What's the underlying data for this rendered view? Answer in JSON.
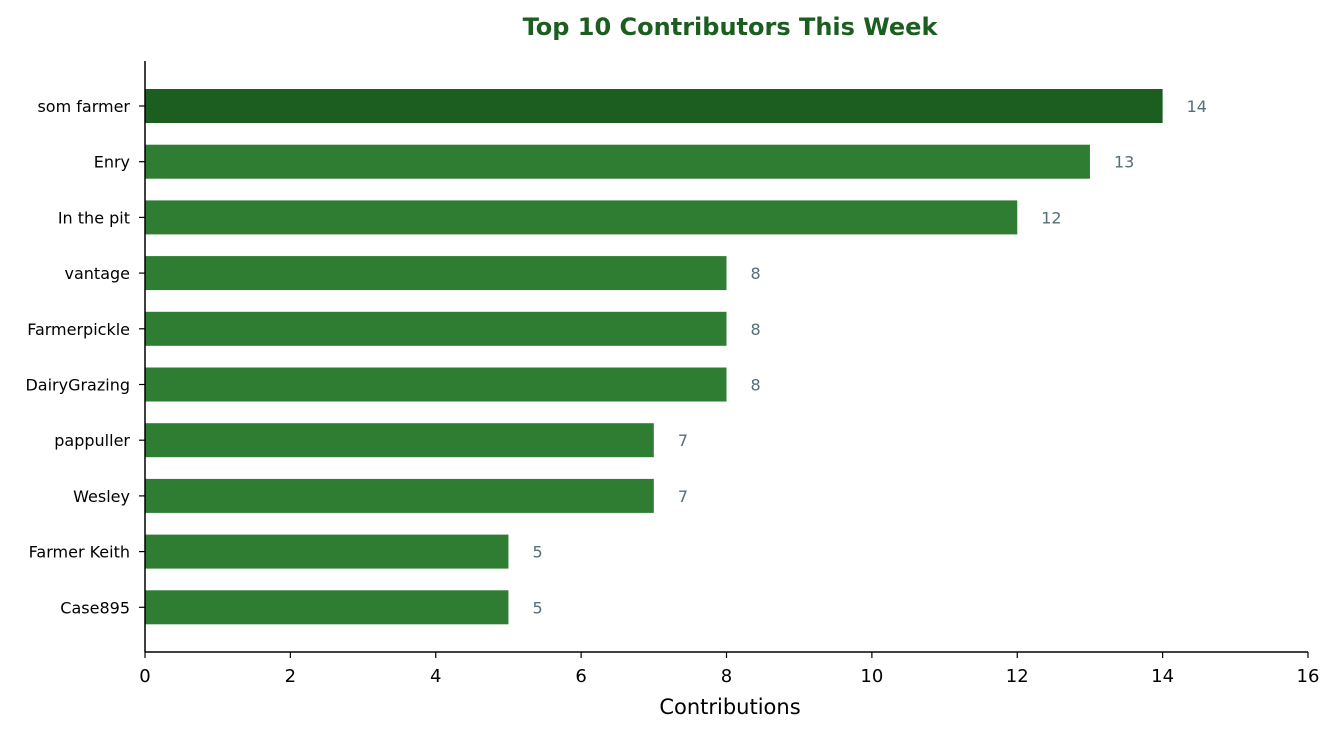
{
  "chart_data": {
    "type": "bar",
    "orientation": "horizontal",
    "title": "Top 10 Contributors This Week",
    "xlabel": "Contributions",
    "ylabel": "",
    "xlim": [
      0,
      16
    ],
    "xticks": [
      0,
      2,
      4,
      6,
      8,
      10,
      12,
      14,
      16
    ],
    "grid": false,
    "categories": [
      "som farmer",
      "Enry",
      "In the pit",
      "vantage",
      "Farmerpickle",
      "DairyGrazing",
      "pappuller",
      "Wesley",
      "Farmer Keith",
      "Case895"
    ],
    "values": [
      14,
      13,
      12,
      8,
      8,
      8,
      7,
      7,
      5,
      5
    ],
    "data_labels": [
      "14",
      "13",
      "12",
      "8",
      "8",
      "8",
      "7",
      "7",
      "5",
      "5"
    ]
  },
  "colors": {
    "title": "#1b5e20",
    "top_bar": "#1b5e20",
    "bar": "#2e7d32",
    "value_label": "#546e7a",
    "axis": "#000000",
    "text": "#000000"
  }
}
